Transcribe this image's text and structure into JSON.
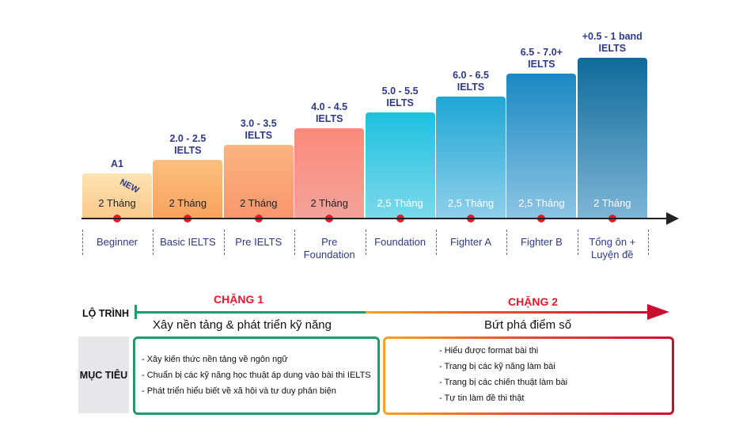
{
  "levels": [
    {
      "value": "A1",
      "duration": "2 Tháng",
      "name": "Beginner",
      "color_top": "#fde3b4",
      "color_bottom": "#fbc88a"
    },
    {
      "value": "2.0 - 2.5\nIELTS",
      "duration": "2 Tháng",
      "name": "Basic IELTS",
      "color_top": "#fbc07e",
      "color_bottom": "#f9a25e"
    },
    {
      "value": "3.0 - 3.5\nIELTS",
      "duration": "2 Tháng",
      "name": "Pre IELTS",
      "color_top": "#fbb481",
      "color_bottom": "#f9956e"
    },
    {
      "value": "4.0 - 4.5\nIELTS",
      "duration": "2 Tháng",
      "name": "Pre\nFoundation",
      "color_top": "#fb8a7c",
      "color_bottom": "#f3a39b"
    },
    {
      "value": "5.0 - 5.5\nIELTS",
      "duration": "2,5 Tháng",
      "name": "Foundation",
      "color_top": "#1fc0e0",
      "color_bottom": "#7dd9ea"
    },
    {
      "value": "6.0 - 6.5\nIELTS",
      "duration": "2,5 Tháng",
      "name": "Fighter A",
      "color_top": "#1fa6d6",
      "color_bottom": "#8fd0ea"
    },
    {
      "value": "6.5 - 7.0+\nIELTS",
      "duration": "2,5 Tháng",
      "name": "Fighter B",
      "color_top": "#1a88c2",
      "color_bottom": "#8ec5e4"
    },
    {
      "value": "+0.5 - 1 band\nIELTS",
      "duration": "2 Tháng",
      "name": "Tổng ôn +\nLuyện đề",
      "color_top": "#0f6a9a",
      "color_bottom": "#7fb6d6"
    }
  ],
  "new_tag": "NEW",
  "route": {
    "label": "LỘ TRÌNH",
    "stage1_title": "CHẶNG 1",
    "stage1_subtitle": "Xây nền tảng & phát triển kỹ năng",
    "stage2_title": "CHẶNG 2",
    "stage2_subtitle": "Bứt phá điểm số"
  },
  "goals": {
    "label": "MỤC TIÊU",
    "stage1_items": [
      "- Xây kiến thức nền tảng về ngôn ngữ",
      "- Chuẩn bị các kỹ năng học thuật áp dung vào bài thi IELTS",
      "- Phát triển hiểu biết về xã hội và tư duy phản biện"
    ],
    "stage2_items": [
      "- Hiểu được format bài thi",
      "- Trang bị các kỹ năng làm bài",
      "- Trang bị các chiến thuật làm bài",
      "- Tự tin làm đề thi thật"
    ]
  },
  "colors": {
    "accent_navy": "#2e3a87",
    "stage1": "#1f9a6a",
    "stage1_title": "#e8192c",
    "stage2": "#c8102e"
  }
}
